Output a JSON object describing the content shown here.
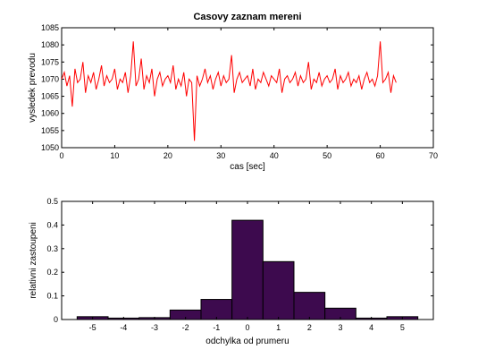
{
  "chart_data": [
    {
      "type": "line",
      "title": "Casovy zaznam mereni",
      "xlabel": "cas [sec]",
      "ylabel": "vysledek prevodu",
      "xlim": [
        0,
        70
      ],
      "ylim": [
        1050,
        1085
      ],
      "xticks": [
        0,
        10,
        20,
        30,
        40,
        50,
        60,
        70
      ],
      "yticks": [
        1050,
        1055,
        1060,
        1065,
        1070,
        1075,
        1080,
        1085
      ],
      "grid": false,
      "color": "#ff0000",
      "series": [
        {
          "x": [
            0,
            0.5,
            1,
            1.5,
            2,
            2.5,
            3,
            3.5,
            4,
            4.5,
            5,
            5.5,
            6,
            6.5,
            7,
            7.5,
            8,
            8.5,
            9,
            9.5,
            10,
            10.5,
            11,
            11.5,
            12,
            12.5,
            13,
            13.5,
            14,
            14.5,
            15,
            15.5,
            16,
            16.5,
            17,
            17.5,
            18,
            18.5,
            19,
            19.5,
            20,
            20.5,
            21,
            21.5,
            22,
            22.5,
            23,
            23.5,
            24,
            24.5,
            25,
            25.5,
            26,
            26.5,
            27,
            27.5,
            28,
            28.5,
            29,
            29.5,
            30,
            30.5,
            31,
            31.5,
            32,
            32.5,
            33,
            33.5,
            34,
            34.5,
            35,
            35.5,
            36,
            36.5,
            37,
            37.5,
            38,
            38.5,
            39,
            39.5,
            40,
            40.5,
            41,
            41.5,
            42,
            42.5,
            43,
            43.5,
            44,
            44.5,
            45,
            45.5,
            46,
            46.5,
            47,
            47.5,
            48,
            48.5,
            49,
            49.5,
            50,
            50.5,
            51,
            51.5,
            52,
            52.5,
            53,
            53.5,
            54,
            54.5,
            55,
            55.5,
            56,
            56.5,
            57,
            57.5,
            58,
            58.5,
            59,
            59.5,
            60,
            60.5,
            61,
            61.5,
            62,
            62.5,
            63
          ],
          "y": [
            1070,
            1072,
            1068,
            1071,
            1062,
            1073,
            1069,
            1070,
            1075,
            1066,
            1071,
            1069,
            1072,
            1067,
            1070,
            1074,
            1068,
            1071,
            1069,
            1070,
            1073,
            1067,
            1070,
            1069,
            1072,
            1066,
            1071,
            1081,
            1068,
            1070,
            1076,
            1067,
            1071,
            1069,
            1073,
            1065,
            1070,
            1072,
            1068,
            1070,
            1071,
            1069,
            1074,
            1067,
            1070,
            1068,
            1072,
            1065,
            1070,
            1069,
            1052,
            1071,
            1068,
            1070,
            1073,
            1069,
            1071,
            1067,
            1070,
            1072,
            1068,
            1071,
            1069,
            1070,
            1077,
            1066,
            1070,
            1072,
            1069,
            1070,
            1071,
            1068,
            1073,
            1067,
            1070,
            1069,
            1072,
            1070,
            1068,
            1071,
            1070,
            1069,
            1073,
            1066,
            1070,
            1071,
            1069,
            1070,
            1072,
            1068,
            1071,
            1069,
            1070,
            1075,
            1067,
            1070,
            1069,
            1072,
            1068,
            1070,
            1071,
            1069,
            1070,
            1073,
            1067,
            1071,
            1069,
            1070,
            1072,
            1068,
            1070,
            1069,
            1071,
            1067,
            1070,
            1072,
            1069,
            1070,
            1068,
            1071,
            1081,
            1069,
            1070,
            1072,
            1066,
            1071,
            1069
          ]
        }
      ]
    },
    {
      "type": "bar",
      "xlabel": "odchylka od prumeru",
      "ylabel": "relativni zastoupeni",
      "xlim": [
        -6,
        6
      ],
      "ylim": [
        0,
        0.5
      ],
      "xticks": [
        -5,
        -4,
        -3,
        -2,
        -1,
        0,
        1,
        2,
        3,
        4,
        5
      ],
      "yticks": [
        0,
        0.1,
        0.2,
        0.3,
        0.4,
        0.5
      ],
      "ytick_labels": [
        "0",
        "0.1",
        "0.2",
        "0.3",
        "0.4",
        "0.5"
      ],
      "color": "#3d0a4e",
      "categories": [
        -5,
        -4,
        -3,
        -2,
        -1,
        0,
        1,
        2,
        3,
        4,
        5
      ],
      "values": [
        0.012,
        0.006,
        0.008,
        0.04,
        0.085,
        0.42,
        0.245,
        0.115,
        0.048,
        0.006,
        0.012
      ]
    }
  ]
}
